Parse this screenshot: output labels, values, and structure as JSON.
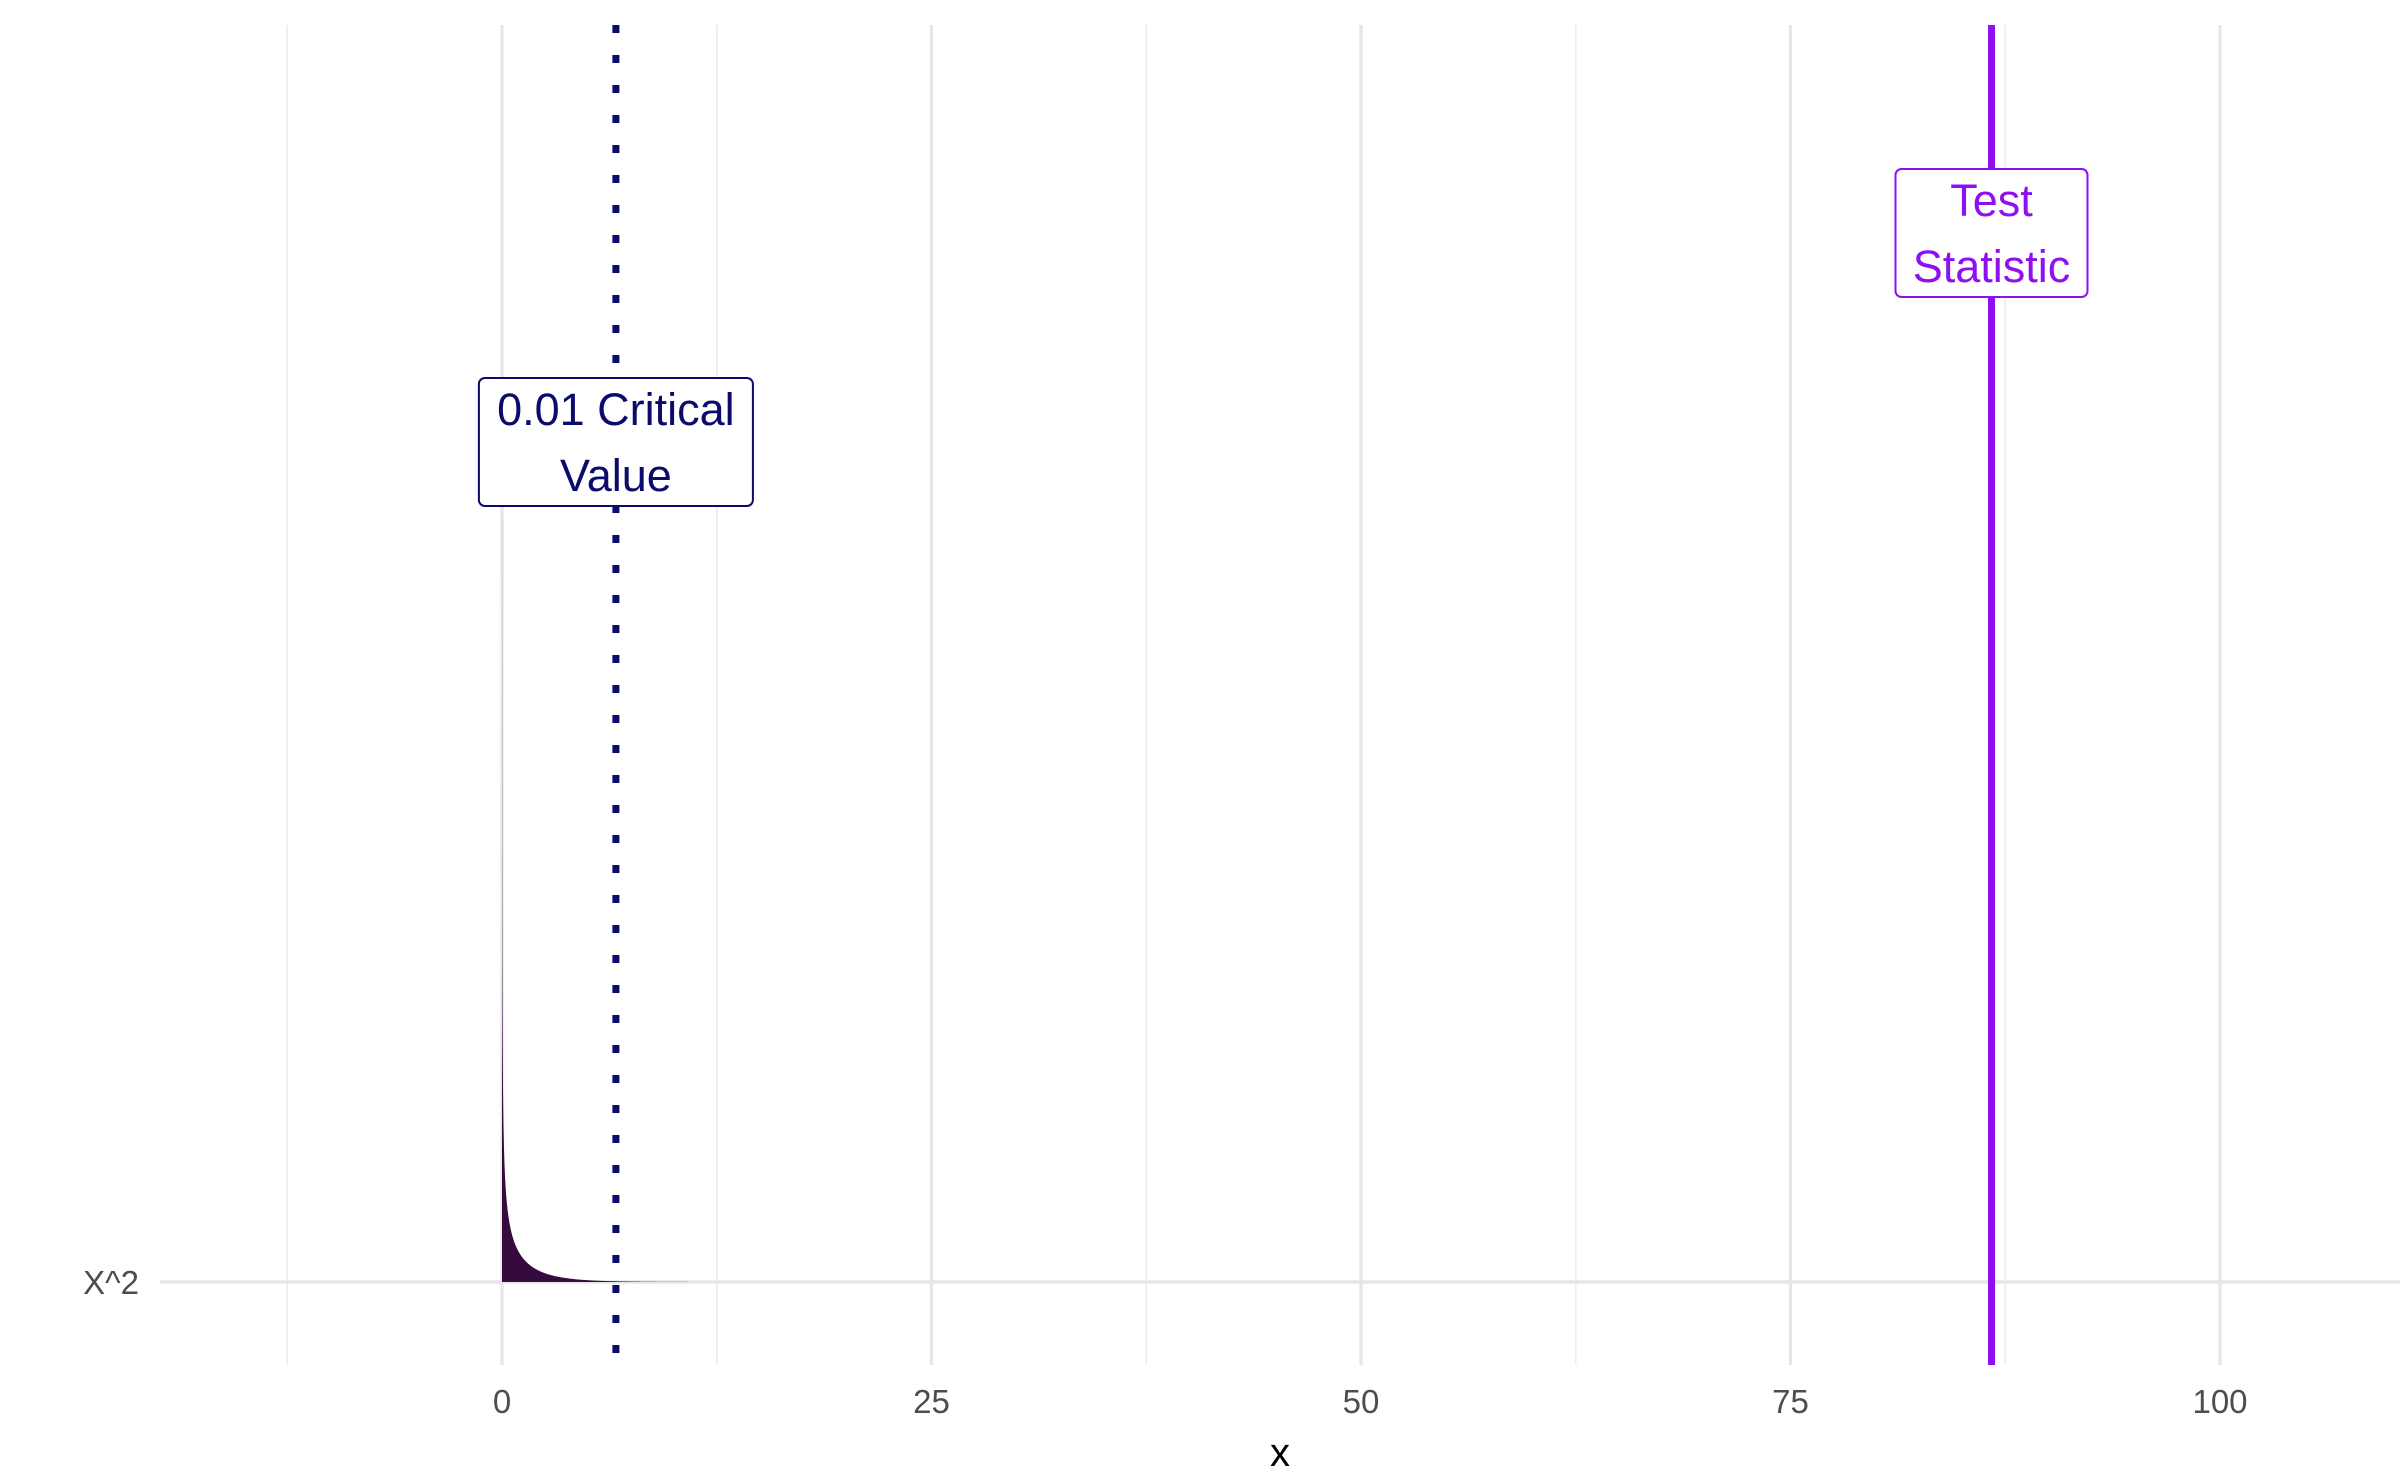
{
  "chart_data": {
    "type": "area",
    "xlabel": "x",
    "ylabel": "",
    "xlim": [
      -22.5,
      110
    ],
    "x_ticks": [
      0,
      25,
      50,
      75,
      100
    ],
    "x_tick_labels": [
      "0",
      "25",
      "50",
      "75",
      "100"
    ],
    "y_categories": [
      "X^2"
    ],
    "grid": true,
    "legend": "none",
    "distribution": {
      "name": "X^2",
      "df": 1,
      "fill_color": "#360a3f",
      "max_x": 20
    },
    "reference_lines": [
      {
        "id": "critical",
        "x": 6.63,
        "style": "dotted",
        "color": "#0b0b6b",
        "label_lines": [
          "0.01 Critical",
          "Value"
        ]
      },
      {
        "id": "statistic",
        "x": 86.7,
        "style": "solid",
        "color": "#8f0ff0",
        "label_lines": [
          "Test",
          "Statistic"
        ]
      }
    ]
  }
}
